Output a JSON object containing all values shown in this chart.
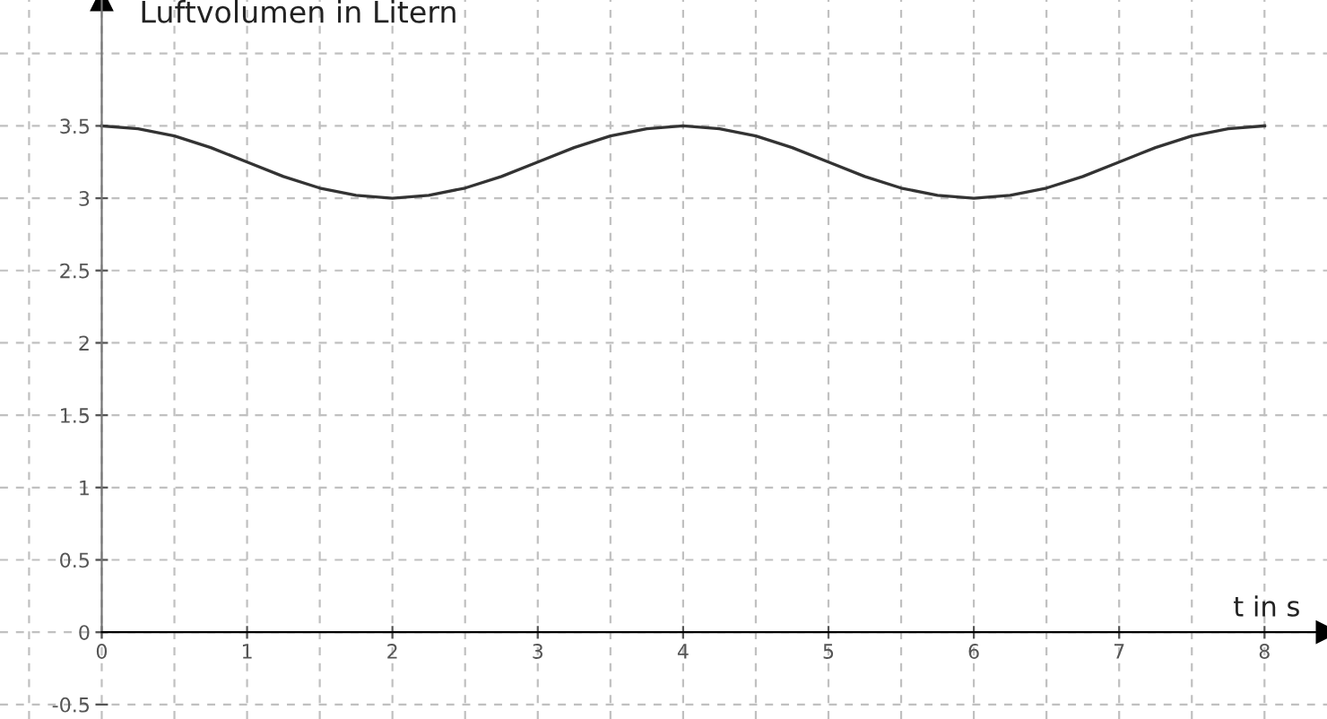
{
  "chart_data": {
    "type": "line",
    "xlabel": "t in s",
    "ylabel": "Luftvolumen in Litern",
    "x": [
      0,
      0.25,
      0.5,
      0.75,
      1,
      1.25,
      1.5,
      1.75,
      2,
      2.25,
      2.5,
      2.75,
      3,
      3.25,
      3.5,
      3.75,
      4,
      4.25,
      4.5,
      4.75,
      5,
      5.25,
      5.5,
      5.75,
      6,
      6.25,
      6.5,
      6.75,
      7,
      7.25,
      7.5,
      7.75,
      8
    ],
    "series": [
      {
        "color": "#333333",
        "values": [
          3.5,
          3.48,
          3.43,
          3.35,
          3.25,
          3.15,
          3.07,
          3.02,
          3.0,
          3.02,
          3.07,
          3.15,
          3.25,
          3.35,
          3.43,
          3.48,
          3.5,
          3.48,
          3.43,
          3.35,
          3.25,
          3.15,
          3.07,
          3.02,
          3.0,
          3.02,
          3.07,
          3.15,
          3.25,
          3.35,
          3.43,
          3.48,
          3.5
        ]
      }
    ],
    "xlim": [
      -0.7,
      8.43
    ],
    "ylim": [
      -0.6,
      4.37
    ],
    "xticks": [
      0,
      1,
      2,
      3,
      4,
      5,
      6,
      7,
      8
    ],
    "yticks": [
      {
        "value": -0.5,
        "label": "-0.5"
      },
      0,
      0.5,
      1,
      1.5,
      2,
      2.5,
      3,
      3.5
    ],
    "grid": true,
    "marker": "none",
    "line_style": "solid",
    "legend": false
  }
}
